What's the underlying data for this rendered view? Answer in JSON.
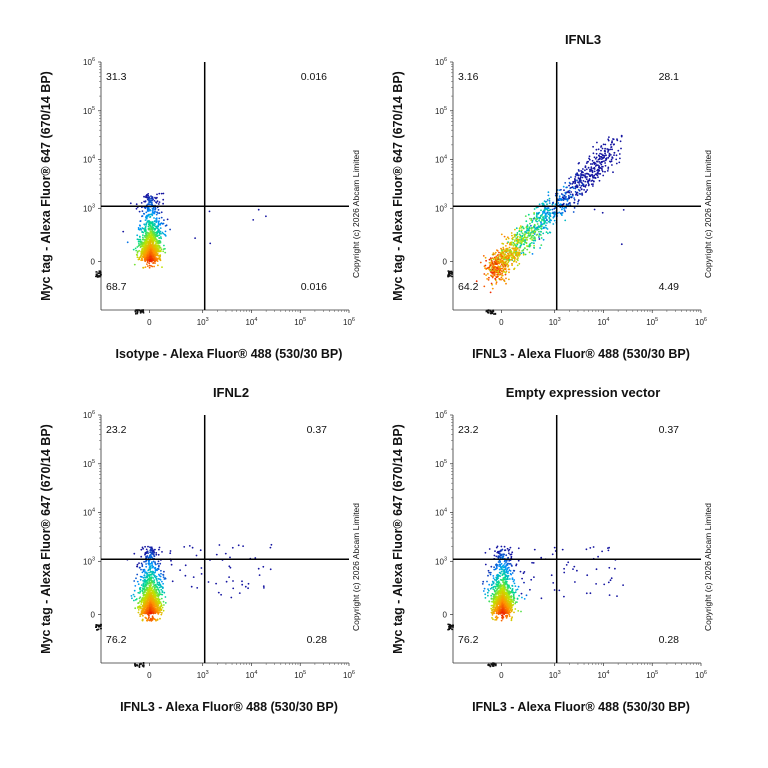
{
  "chart_data": [
    {
      "type": "scatter",
      "title": "",
      "xlabel": "Isotype - Alexa Fluor® 488 (530/30 BP)",
      "ylabel": "Myc tag - Alexa Fluor® 647 (670/14 BP)",
      "x_ticks": [
        "0",
        "10",
        "10",
        "10",
        "10"
      ],
      "x_tick_exponents": [
        "",
        "3",
        "4",
        "5",
        "6"
      ],
      "y_ticks": [
        "0",
        "10",
        "10",
        "10",
        "10"
      ],
      "y_tick_exponents": [
        "",
        "3",
        "4",
        "5",
        "6"
      ],
      "x_scale": "biexponential",
      "y_scale": "biexponential",
      "gate_x": 1100,
      "gate_y": 1100,
      "quadrants": {
        "upper_left": "31.3",
        "upper_right": "0.016",
        "lower_left": "68.7",
        "lower_right": "0.016"
      },
      "copyright": "Copyright (c) 2026 Abcam Limited"
    },
    {
      "type": "scatter",
      "title": "IFNL3",
      "xlabel": "IFNL3 - Alexa Fluor® 488 (530/30 BP)",
      "ylabel": "Myc tag - Alexa Fluor® 647 (670/14 BP)",
      "x_ticks": [
        "0",
        "10",
        "10",
        "10",
        "10"
      ],
      "x_tick_exponents": [
        "",
        "3",
        "4",
        "5",
        "6"
      ],
      "y_ticks": [
        "0",
        "10",
        "10",
        "10",
        "10"
      ],
      "y_tick_exponents": [
        "",
        "3",
        "4",
        "5",
        "6"
      ],
      "x_scale": "biexponential",
      "y_scale": "biexponential",
      "gate_x": 1100,
      "gate_y": 1100,
      "quadrants": {
        "upper_left": "3.16",
        "upper_right": "28.1",
        "lower_left": "64.2",
        "lower_right": "4.49"
      },
      "copyright": "Copyright (c) 2026 Abcam Limited"
    },
    {
      "type": "scatter",
      "title": "IFNL2",
      "xlabel": "IFNL3 - Alexa Fluor® 488 (530/30 BP)",
      "ylabel": "Myc tag - Alexa Fluor® 647 (670/14 BP)",
      "x_ticks": [
        "0",
        "10",
        "10",
        "10",
        "10"
      ],
      "x_tick_exponents": [
        "",
        "3",
        "4",
        "5",
        "6"
      ],
      "y_ticks": [
        "0",
        "10",
        "10",
        "10",
        "10"
      ],
      "y_tick_exponents": [
        "",
        "3",
        "4",
        "5",
        "6"
      ],
      "x_scale": "biexponential",
      "y_scale": "biexponential",
      "gate_x": 1100,
      "gate_y": 1100,
      "quadrants": {
        "upper_left": "23.2",
        "upper_right": "0.37",
        "lower_left": "76.2",
        "lower_right": "0.28"
      },
      "copyright": "Copyright (c) 2026 Abcam Limited"
    },
    {
      "type": "scatter",
      "title": "Empty expression vector",
      "xlabel": "IFNL3 - Alexa Fluor® 488 (530/30 BP)",
      "ylabel": "Myc tag - Alexa Fluor® 647 (670/14 BP)",
      "x_ticks": [
        "0",
        "10",
        "10",
        "10",
        "10"
      ],
      "x_tick_exponents": [
        "",
        "3",
        "4",
        "5",
        "6"
      ],
      "y_ticks": [
        "0",
        "10",
        "10",
        "10",
        "10"
      ],
      "y_tick_exponents": [
        "",
        "3",
        "4",
        "5",
        "6"
      ],
      "x_scale": "biexponential",
      "y_scale": "biexponential",
      "gate_x": 1100,
      "gate_y": 1100,
      "quadrants": {
        "upper_left": "23.2",
        "upper_right": "0.37",
        "lower_left": "76.2",
        "lower_right": "0.28"
      },
      "copyright": "Copyright (c) 2026 Abcam Limited"
    }
  ]
}
